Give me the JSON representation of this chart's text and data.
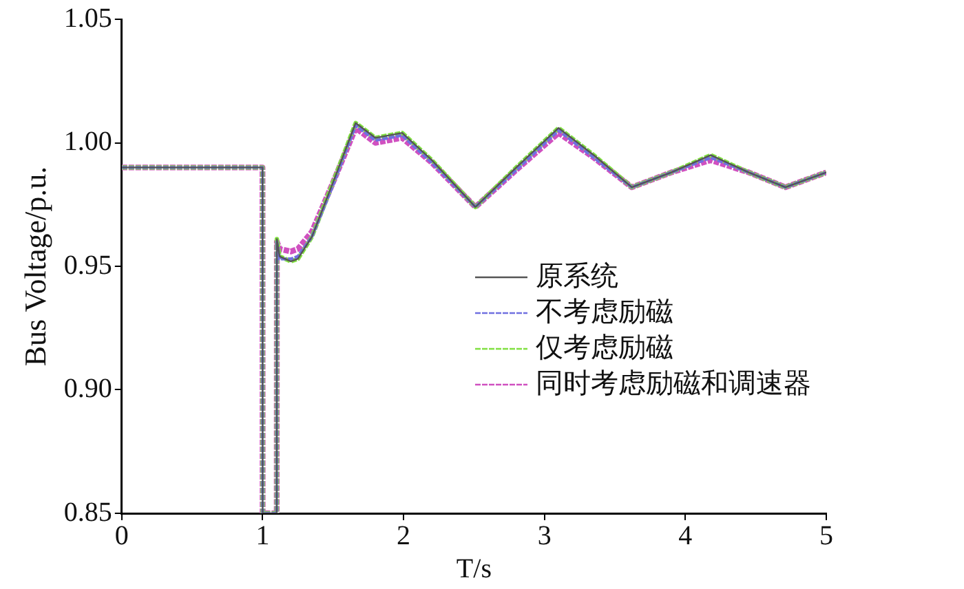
{
  "chart_data": {
    "type": "line",
    "xlabel": "T/s",
    "ylabel": "Bus Voltage/p.u.",
    "x": [
      0,
      0.999,
      1.0,
      1.1,
      1.101,
      1.12,
      1.2,
      1.25,
      1.35,
      1.5,
      1.66,
      1.8,
      1.99,
      2.2,
      2.51,
      2.8,
      3.1,
      3.35,
      3.62,
      3.9,
      4.18,
      4.45,
      4.71,
      5.0
    ],
    "series": [
      {
        "name": "原系统",
        "color": "#555555",
        "line_style": "solid",
        "values": [
          0.99,
          0.99,
          0.85,
          0.85,
          0.961,
          0.954,
          0.952,
          0.953,
          0.962,
          0.984,
          1.008,
          1.002,
          1.004,
          0.993,
          0.974,
          0.99,
          1.006,
          0.995,
          0.982,
          0.988,
          0.995,
          0.988,
          0.982,
          0.988
        ]
      },
      {
        "name": "不考虑励磁",
        "color": "#7070e0",
        "line_style": "dashed",
        "values": [
          0.99,
          0.99,
          0.85,
          0.85,
          0.96,
          0.953,
          0.953,
          0.954,
          0.962,
          0.983,
          1.007,
          1.001,
          1.003,
          0.992,
          0.974,
          0.989,
          1.005,
          0.994,
          0.982,
          0.988,
          0.994,
          0.988,
          0.982,
          0.988
        ]
      },
      {
        "name": "仅考虑励磁",
        "color": "#80e040",
        "line_style": "dashed",
        "values": [
          0.99,
          0.99,
          0.85,
          0.85,
          0.961,
          0.954,
          0.952,
          0.953,
          0.962,
          0.984,
          1.008,
          1.002,
          1.004,
          0.993,
          0.974,
          0.99,
          1.006,
          0.995,
          0.982,
          0.988,
          0.995,
          0.988,
          0.982,
          0.988
        ]
      },
      {
        "name": "同时考虑励磁和调速器",
        "color": "#d050c0",
        "line_style": "dashed",
        "values": [
          0.99,
          0.99,
          0.85,
          0.85,
          0.96,
          0.957,
          0.956,
          0.957,
          0.964,
          0.984,
          1.006,
          1.0,
          1.002,
          0.992,
          0.974,
          0.989,
          1.004,
          0.994,
          0.982,
          0.988,
          0.993,
          0.988,
          0.982,
          0.988
        ]
      }
    ],
    "xlim": [
      0,
      5
    ],
    "xticks": [
      0,
      1,
      2,
      3,
      4,
      5
    ],
    "ylim": [
      0.85,
      1.05
    ],
    "yticks": [
      {
        "value": 0.85,
        "label": "0.85"
      },
      {
        "value": 0.9,
        "label": "0.90"
      },
      {
        "value": 0.95,
        "label": "0.95"
      },
      {
        "value": 1.0,
        "label": "1.00"
      },
      {
        "value": 1.05,
        "label": "1.05"
      }
    ],
    "grid": false,
    "legend": "right",
    "marker": "none"
  }
}
